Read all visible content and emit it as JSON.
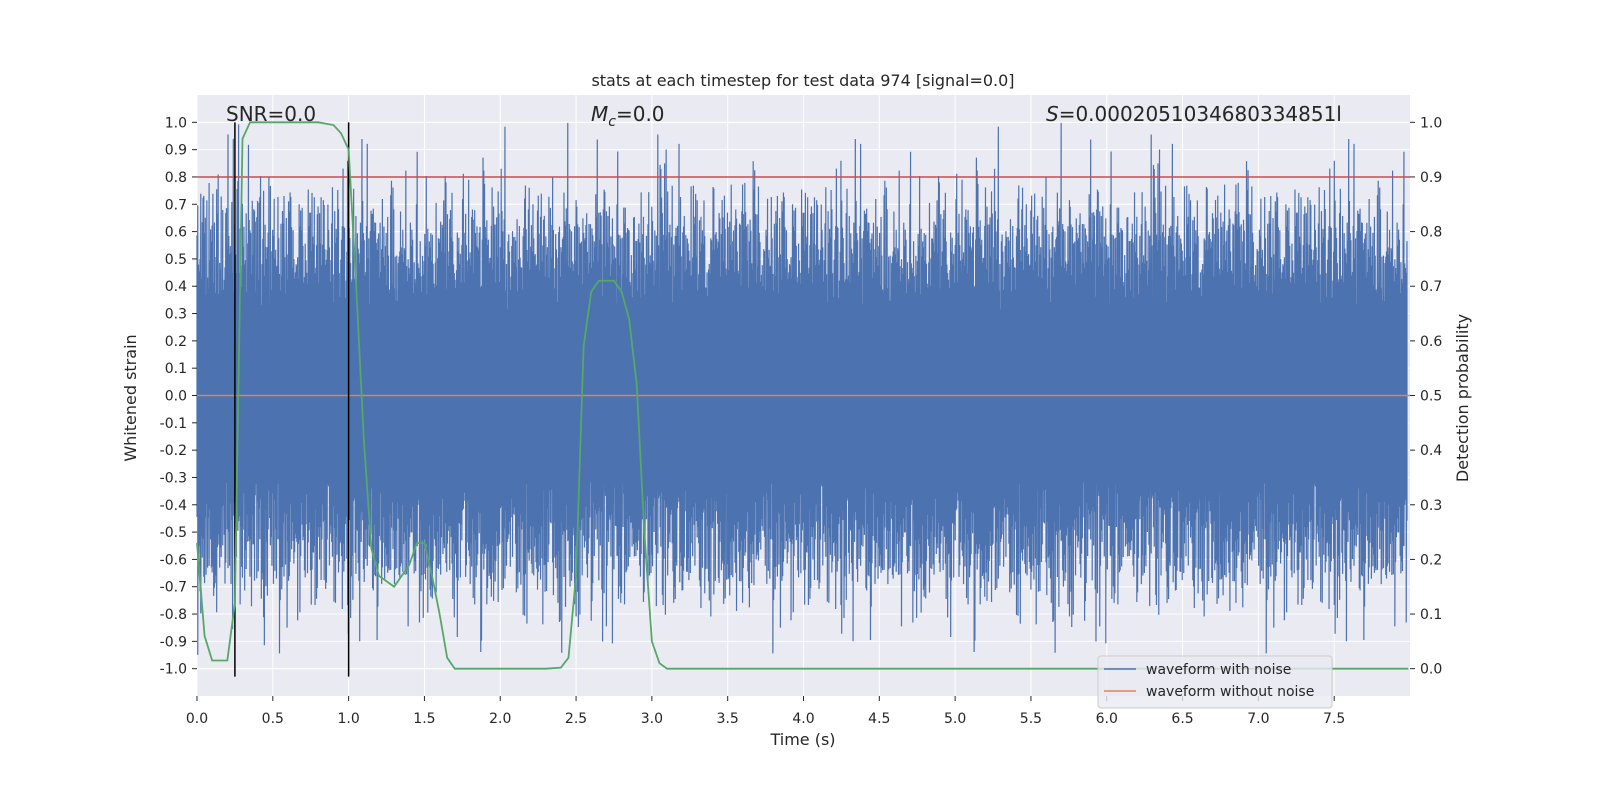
{
  "chart_data": {
    "type": "line",
    "title": "stats at each timestep for test data 974 [signal=0.0]",
    "xlabel": "Time (s)",
    "ylabel": "Whitened strain",
    "y2label": "Detection probability",
    "xlim": [
      0.0,
      8.0
    ],
    "ylim": [
      -1.1,
      1.1
    ],
    "y2lim": [
      -0.05,
      1.05
    ],
    "x_ticks": [
      0.0,
      0.5,
      1.0,
      1.5,
      2.0,
      2.5,
      3.0,
      3.5,
      4.0,
      4.5,
      5.0,
      5.5,
      6.0,
      6.5,
      7.0,
      7.5
    ],
    "x_tick_labels": [
      "0.0",
      "0.5",
      "1.0",
      "1.5",
      "2.0",
      "2.5",
      "3.0",
      "3.5",
      "4.0",
      "4.5",
      "5.0",
      "5.5",
      "6.0",
      "6.5",
      "7.0",
      "7.5"
    ],
    "y_ticks": [
      1.0,
      0.9,
      0.8,
      0.7,
      0.6,
      0.5,
      0.4,
      0.3,
      0.2,
      0.1,
      0.0,
      -0.1,
      -0.2,
      -0.3,
      -0.4,
      -0.5,
      -0.6,
      -0.7,
      -0.8,
      -0.9,
      -1.0
    ],
    "y_tick_labels": [
      "1.0",
      "0.9",
      "0.8",
      "0.7",
      "0.6",
      "0.5",
      "0.4",
      "0.3",
      "0.2",
      "0.1",
      "0.0",
      "-0.1",
      "-0.2",
      "-0.3",
      "-0.4",
      "-0.5",
      "-0.6",
      "-0.7",
      "-0.8",
      "-0.9",
      "-1.0"
    ],
    "y2_ticks": [
      1.0,
      0.9,
      0.8,
      0.7,
      0.6,
      0.5,
      0.4,
      0.3,
      0.2,
      0.1,
      0.0
    ],
    "y2_tick_labels": [
      "1.0",
      "0.9",
      "0.8",
      "0.7",
      "0.6",
      "0.5",
      "0.4",
      "0.3",
      "0.2",
      "0.1",
      "0.0"
    ],
    "annotations": {
      "snr": "SNR=0.0",
      "mc_symbol": "M",
      "mc_sub": "c",
      "mc_value": "=0.0",
      "s_symbol": "S",
      "s_value": "=0.0002051034680334851l"
    },
    "threshold": {
      "value": 0.8,
      "color": "#c44e52"
    },
    "vertical_markers": [
      0.25,
      1.0
    ],
    "series": [
      {
        "name": "waveform with noise",
        "color": "#4c72b0",
        "kind": "noise",
        "amplitude_envelope": 0.62,
        "peak_max": 1.0,
        "peak_min": -0.95
      },
      {
        "name": "waveform without noise",
        "color": "#dd8452",
        "x": [
          0.0,
          8.0
        ],
        "values": [
          0.0,
          0.0
        ]
      },
      {
        "name": "detection probability",
        "color": "#55a868",
        "axis": "right",
        "x": [
          0.0,
          0.05,
          0.1,
          0.15,
          0.2,
          0.25,
          0.3,
          0.35,
          0.4,
          0.5,
          0.6,
          0.7,
          0.8,
          0.9,
          0.95,
          1.0,
          1.05,
          1.1,
          1.15,
          1.2,
          1.25,
          1.3,
          1.35,
          1.4,
          1.45,
          1.5,
          1.55,
          1.6,
          1.65,
          1.7,
          1.8,
          2.0,
          2.2,
          2.3,
          2.4,
          2.45,
          2.5,
          2.55,
          2.6,
          2.65,
          2.7,
          2.75,
          2.8,
          2.85,
          2.9,
          2.95,
          3.0,
          3.05,
          3.1,
          3.5,
          4.0,
          5.0,
          6.0,
          7.0,
          7.99
        ],
        "values": [
          0.23,
          0.06,
          0.015,
          0.015,
          0.015,
          0.12,
          0.97,
          1.0,
          1.0,
          1.0,
          1.0,
          1.0,
          1.0,
          0.995,
          0.98,
          0.95,
          0.7,
          0.42,
          0.22,
          0.17,
          0.16,
          0.15,
          0.17,
          0.19,
          0.23,
          0.23,
          0.17,
          0.1,
          0.02,
          0.0,
          0.0,
          0.0,
          0.0,
          0.0,
          0.002,
          0.02,
          0.17,
          0.59,
          0.69,
          0.71,
          0.71,
          0.71,
          0.69,
          0.64,
          0.52,
          0.25,
          0.05,
          0.01,
          0.0,
          0.0,
          0.0,
          0.0,
          0.0,
          0.0,
          0.0
        ]
      }
    ],
    "legend": {
      "position": "lower-right",
      "entries": [
        {
          "label": "waveform with noise",
          "color": "#4c72b0"
        },
        {
          "label": "waveform without noise",
          "color": "#dd8452"
        }
      ]
    },
    "colors": {
      "plot_bg": "#eaeaf2",
      "grid": "#ffffff",
      "marker": "#000000",
      "text": "#262626"
    }
  }
}
